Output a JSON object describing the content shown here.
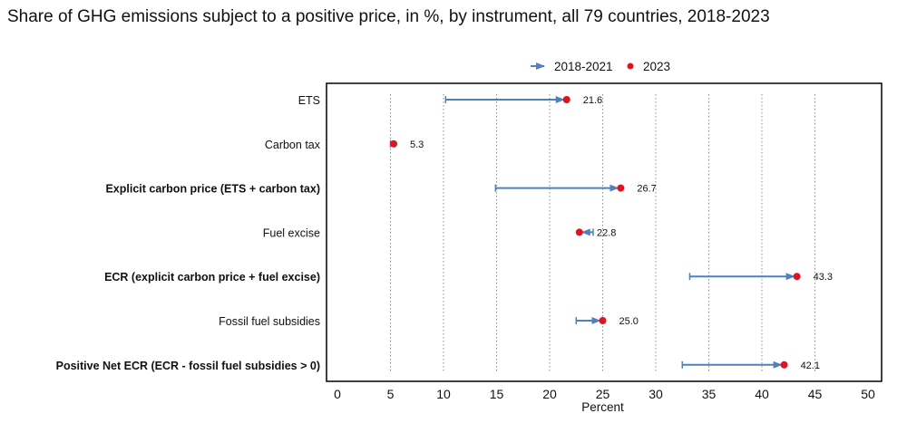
{
  "chart_data": {
    "type": "dumbbell-arrow",
    "title": "Share of GHG emissions subject to a positive price, in %, by instrument, all 79 countries, 2018-2023",
    "xlabel": "Percent",
    "xlim": [
      0,
      50
    ],
    "xticks": [
      0,
      5,
      10,
      15,
      20,
      25,
      30,
      35,
      40,
      45,
      50
    ],
    "grid": "vertical dotted",
    "legend": {
      "placement": "top",
      "entries": [
        "2018-2021",
        "2023"
      ]
    },
    "colors": {
      "arrow": "#4f81bd",
      "point": "#e8101a"
    },
    "categories": [
      {
        "label": "ETS",
        "bold": false,
        "start": 10.2,
        "end": 21.6,
        "label_value": "21.6"
      },
      {
        "label": "Carbon tax",
        "bold": false,
        "start": 5.0,
        "end": 5.3,
        "label_value": "5.3"
      },
      {
        "label": "Explicit carbon price (ETS + carbon tax)",
        "bold": true,
        "start": 14.9,
        "end": 26.7,
        "label_value": "26.7"
      },
      {
        "label": "Fuel excise",
        "bold": false,
        "start": 24.1,
        "end": 22.8,
        "label_value": "22.8"
      },
      {
        "label": "ECR (explicit carbon price + fuel excise)",
        "bold": true,
        "start": 33.2,
        "end": 43.3,
        "label_value": "43.3"
      },
      {
        "label": "Fossil fuel subsidies",
        "bold": false,
        "start": 22.5,
        "end": 25.0,
        "label_value": "25.0"
      },
      {
        "label": "Positive Net ECR (ECR - fossil fuel subsidies > 0)",
        "bold": true,
        "start": 32.5,
        "end": 42.1,
        "label_value": "42.1"
      }
    ]
  }
}
